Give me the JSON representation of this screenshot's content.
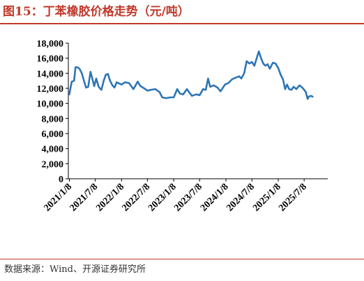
{
  "header": {
    "title": "图15：丁苯橡胶价格走势（元/吨）"
  },
  "footer": {
    "source": "数据来源：Wind、开源证券研究所"
  },
  "colors": {
    "accent": "#c0392b",
    "series": "#2e75b6",
    "axis": "#000000"
  },
  "chart_data": {
    "type": "line",
    "title": "",
    "xlabel": "",
    "ylabel": "",
    "ylim": [
      0,
      18000
    ],
    "grid": false,
    "yticks": [
      0,
      2000,
      4000,
      6000,
      8000,
      10000,
      12000,
      14000,
      16000,
      18000
    ],
    "ytick_labels": [
      "0",
      "2,000",
      "4,000",
      "6,000",
      "8,000",
      "10,000",
      "12,000",
      "14,000",
      "16,000",
      "18,000"
    ],
    "xlim": [
      "2021-01-01",
      "2025-12-20"
    ],
    "xticks": [
      "2021-01-08",
      "2021-07-08",
      "2022-01-08",
      "2022-07-08",
      "2023-01-08",
      "2023-07-08",
      "2024-01-08",
      "2024-07-08",
      "2025-01-08",
      "2025-07-08"
    ],
    "xtick_labels": [
      "2021/1/8",
      "2021/7/8",
      "2022/1/8",
      "2022/7/8",
      "2023/1/8",
      "2023/7/8",
      "2024/1/8",
      "2024/7/8",
      "2025/1/8",
      "2025/7/8"
    ],
    "series": [
      {
        "points": [
          [
            "2021-01-08",
            11200
          ],
          [
            "2021-01-25",
            12900
          ],
          [
            "2021-02-10",
            13000
          ],
          [
            "2021-02-20",
            14800
          ],
          [
            "2021-03-05",
            14800
          ],
          [
            "2021-03-20",
            14600
          ],
          [
            "2021-04-05",
            14000
          ],
          [
            "2021-04-20",
            13000
          ],
          [
            "2021-05-05",
            12100
          ],
          [
            "2021-05-20",
            12200
          ],
          [
            "2021-06-05",
            14200
          ],
          [
            "2021-06-15",
            13500
          ],
          [
            "2021-07-01",
            12300
          ],
          [
            "2021-07-15",
            13300
          ],
          [
            "2021-08-01",
            12200
          ],
          [
            "2021-08-20",
            11800
          ],
          [
            "2021-09-05",
            13000
          ],
          [
            "2021-09-20",
            13800
          ],
          [
            "2021-10-05",
            13900
          ],
          [
            "2021-10-20",
            13000
          ],
          [
            "2021-11-05",
            12400
          ],
          [
            "2021-11-20",
            12100
          ],
          [
            "2021-12-05",
            12800
          ],
          [
            "2022-01-08",
            12500
          ],
          [
            "2022-02-01",
            12800
          ],
          [
            "2022-03-01",
            12700
          ],
          [
            "2022-04-01",
            11900
          ],
          [
            "2022-05-01",
            12900
          ],
          [
            "2022-05-20",
            12300
          ],
          [
            "2022-06-15",
            12000
          ],
          [
            "2022-07-08",
            11700
          ],
          [
            "2022-08-01",
            11800
          ],
          [
            "2022-09-01",
            11900
          ],
          [
            "2022-10-01",
            11500
          ],
          [
            "2022-10-20",
            10800
          ],
          [
            "2022-11-15",
            10700
          ],
          [
            "2022-12-15",
            10800
          ],
          [
            "2023-01-08",
            10800
          ],
          [
            "2023-02-01",
            11900
          ],
          [
            "2023-02-20",
            11300
          ],
          [
            "2023-03-15",
            11200
          ],
          [
            "2023-04-10",
            11900
          ],
          [
            "2023-04-25",
            11500
          ],
          [
            "2023-05-15",
            11000
          ],
          [
            "2023-06-15",
            11200
          ],
          [
            "2023-07-08",
            11100
          ],
          [
            "2023-08-01",
            11900
          ],
          [
            "2023-08-20",
            11800
          ],
          [
            "2023-09-05",
            13300
          ],
          [
            "2023-09-20",
            12200
          ],
          [
            "2023-10-15",
            12400
          ],
          [
            "2023-11-10",
            12100
          ],
          [
            "2023-12-01",
            11600
          ],
          [
            "2024-01-01",
            12500
          ],
          [
            "2024-01-25",
            12700
          ],
          [
            "2024-02-20",
            13200
          ],
          [
            "2024-03-15",
            13400
          ],
          [
            "2024-04-10",
            13600
          ],
          [
            "2024-04-25",
            13300
          ],
          [
            "2024-05-15",
            14000
          ],
          [
            "2024-06-01",
            15600
          ],
          [
            "2024-06-20",
            15300
          ],
          [
            "2024-07-08",
            15500
          ],
          [
            "2024-07-25",
            15000
          ],
          [
            "2024-08-10",
            16000
          ],
          [
            "2024-08-25",
            16900
          ],
          [
            "2024-09-10",
            16000
          ],
          [
            "2024-09-25",
            15300
          ],
          [
            "2024-10-10",
            15000
          ],
          [
            "2024-10-25",
            15200
          ],
          [
            "2024-11-10",
            14600
          ],
          [
            "2024-12-01",
            15400
          ],
          [
            "2024-12-20",
            15300
          ],
          [
            "2025-01-08",
            14700
          ],
          [
            "2025-01-25",
            13800
          ],
          [
            "2025-02-10",
            13200
          ],
          [
            "2025-02-25",
            11900
          ],
          [
            "2025-03-10",
            12500
          ],
          [
            "2025-03-25",
            11900
          ],
          [
            "2025-04-10",
            11800
          ],
          [
            "2025-04-25",
            12200
          ],
          [
            "2025-05-15",
            11900
          ],
          [
            "2025-06-05",
            12400
          ],
          [
            "2025-06-25",
            12100
          ],
          [
            "2025-07-08",
            11800
          ],
          [
            "2025-07-20",
            11500
          ],
          [
            "2025-08-01",
            10600
          ],
          [
            "2025-08-10",
            10900
          ],
          [
            "2025-08-25",
            11000
          ],
          [
            "2025-09-05",
            10900
          ]
        ]
      }
    ]
  }
}
